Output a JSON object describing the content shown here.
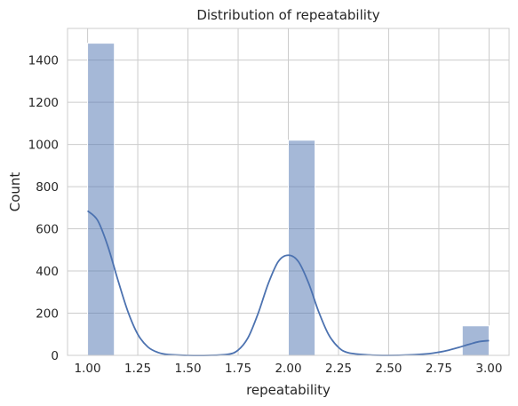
{
  "chart_data": {
    "type": "bar",
    "title": "Distribution of repeatability",
    "xlabel": "repeatability",
    "ylabel": "Count",
    "xlim": [
      0.9,
      3.1
    ],
    "ylim": [
      0,
      1550
    ],
    "xticks": [
      1.0,
      1.25,
      1.5,
      1.75,
      2.0,
      2.25,
      2.5,
      2.75,
      3.0
    ],
    "xtick_labels": [
      "1.00",
      "1.25",
      "1.50",
      "1.75",
      "2.00",
      "2.25",
      "2.50",
      "2.75",
      "3.00"
    ],
    "yticks": [
      0,
      200,
      400,
      600,
      800,
      1000,
      1200,
      1400
    ],
    "ytick_labels": [
      "0",
      "200",
      "400",
      "600",
      "800",
      "1000",
      "1200",
      "1400"
    ],
    "bins": [
      {
        "x0": 1.0,
        "x1": 1.1333,
        "count": 1480
      },
      {
        "x0": 2.0,
        "x1": 2.1333,
        "count": 1020
      },
      {
        "x0": 2.8667,
        "x1": 3.0,
        "count": 140
      }
    ],
    "kde": {
      "x": [
        1.0,
        1.05,
        1.1,
        1.15,
        1.2,
        1.25,
        1.3,
        1.35,
        1.4,
        1.5,
        1.6,
        1.7,
        1.75,
        1.8,
        1.85,
        1.9,
        1.95,
        2.0,
        2.05,
        2.1,
        2.15,
        2.2,
        2.25,
        2.3,
        2.4,
        2.5,
        2.6,
        2.7,
        2.75,
        2.8,
        2.85,
        2.9,
        2.95,
        3.0
      ],
      "y": [
        685,
        640,
        520,
        360,
        210,
        100,
        40,
        14,
        4,
        0,
        0,
        5,
        25,
        85,
        200,
        340,
        445,
        475,
        445,
        345,
        210,
        100,
        38,
        12,
        2,
        0,
        2,
        8,
        15,
        25,
        38,
        52,
        65,
        70
      ]
    },
    "grid": true,
    "bar_color": "#4c72b0",
    "bar_alpha": 0.5,
    "line_color": "#4c72b0"
  }
}
